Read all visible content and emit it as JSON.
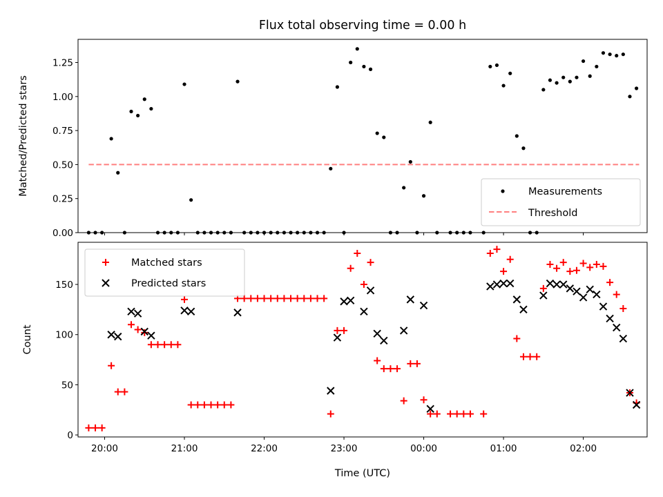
{
  "chart_data": [
    {
      "type": "scatter",
      "title": "Flux total observing time = 0.00 h",
      "xlabel": "",
      "ylabel": "Matched/Predicted stars",
      "xlim": [
        "19:40",
        "02:48"
      ],
      "ylim": [
        0,
        1.42
      ],
      "y_ticks": [
        "0.00",
        "0.25",
        "0.50",
        "0.75",
        "1.00",
        "1.25"
      ],
      "grid": false,
      "legend_position": "lower-right",
      "series": [
        {
          "name": "Measurements",
          "marker": "dot",
          "color": "#000000",
          "points": [
            [
              "19:48",
              0
            ],
            [
              "19:53",
              0
            ],
            [
              "19:58",
              0
            ],
            [
              "20:05",
              0.69
            ],
            [
              "20:10",
              0.44
            ],
            [
              "20:15",
              0
            ],
            [
              "20:20",
              0.89
            ],
            [
              "20:25",
              0.86
            ],
            [
              "20:30",
              0.98
            ],
            [
              "20:35",
              0.91
            ],
            [
              "20:40",
              0
            ],
            [
              "20:45",
              0
            ],
            [
              "20:50",
              0
            ],
            [
              "20:55",
              0
            ],
            [
              "21:00",
              1.09
            ],
            [
              "21:05",
              0.24
            ],
            [
              "21:10",
              0
            ],
            [
              "21:15",
              0
            ],
            [
              "21:20",
              0
            ],
            [
              "21:25",
              0
            ],
            [
              "21:30",
              0
            ],
            [
              "21:35",
              0
            ],
            [
              "21:40",
              1.11
            ],
            [
              "21:45",
              0
            ],
            [
              "21:50",
              0
            ],
            [
              "21:55",
              0
            ],
            [
              "22:00",
              0
            ],
            [
              "22:05",
              0
            ],
            [
              "22:10",
              0
            ],
            [
              "22:15",
              0
            ],
            [
              "22:20",
              0
            ],
            [
              "22:25",
              0
            ],
            [
              "22:30",
              0
            ],
            [
              "22:35",
              0
            ],
            [
              "22:40",
              0
            ],
            [
              "22:45",
              0
            ],
            [
              "22:50",
              0.47
            ],
            [
              "22:55",
              1.07
            ],
            [
              "23:00",
              0
            ],
            [
              "23:05",
              1.25
            ],
            [
              "23:10",
              1.35
            ],
            [
              "23:15",
              1.22
            ],
            [
              "23:20",
              1.2
            ],
            [
              "23:25",
              0.73
            ],
            [
              "23:30",
              0.7
            ],
            [
              "23:35",
              0
            ],
            [
              "23:40",
              0
            ],
            [
              "23:45",
              0.33
            ],
            [
              "23:50",
              0.52
            ],
            [
              "23:55",
              0
            ],
            [
              "00:00",
              0.27
            ],
            [
              "00:05",
              0.81
            ],
            [
              "00:10",
              0
            ],
            [
              "00:20",
              0
            ],
            [
              "00:25",
              0
            ],
            [
              "00:30",
              0
            ],
            [
              "00:35",
              0
            ],
            [
              "00:45",
              0
            ],
            [
              "00:50",
              1.22
            ],
            [
              "00:55",
              1.23
            ],
            [
              "01:00",
              1.08
            ],
            [
              "01:05",
              1.17
            ],
            [
              "01:10",
              0.71
            ],
            [
              "01:15",
              0.62
            ],
            [
              "01:20",
              0
            ],
            [
              "01:25",
              0
            ],
            [
              "01:30",
              1.05
            ],
            [
              "01:35",
              1.12
            ],
            [
              "01:40",
              1.1
            ],
            [
              "01:45",
              1.14
            ],
            [
              "01:50",
              1.11
            ],
            [
              "01:55",
              1.14
            ],
            [
              "02:00",
              1.26
            ],
            [
              "02:05",
              1.15
            ],
            [
              "02:10",
              1.22
            ],
            [
              "02:15",
              1.32
            ],
            [
              "02:20",
              1.31
            ],
            [
              "02:25",
              1.3
            ],
            [
              "02:30",
              1.31
            ],
            [
              "02:35",
              1.0
            ],
            [
              "02:40",
              1.06
            ]
          ]
        },
        {
          "name": "Threshold",
          "marker": "dashed-line",
          "color": "#ff7f7f",
          "points": [
            [
              "19:48",
              0.5
            ],
            [
              "02:42",
              0.5
            ]
          ]
        }
      ]
    },
    {
      "type": "scatter",
      "xlabel": "Time (UTC)",
      "ylabel": "Count",
      "xlim": [
        "19:40",
        "02:48"
      ],
      "ylim": [
        -2,
        192
      ],
      "x_ticks": [
        "20:00",
        "21:00",
        "22:00",
        "23:00",
        "00:00",
        "01:00",
        "02:00"
      ],
      "y_ticks": [
        "0",
        "50",
        "100",
        "150"
      ],
      "grid": false,
      "legend_position": "upper-left",
      "series": [
        {
          "name": "Matched stars",
          "marker": "plus",
          "color": "#ff0000",
          "points": [
            [
              "19:48",
              7
            ],
            [
              "19:53",
              7
            ],
            [
              "19:58",
              7
            ],
            [
              "20:05",
              69
            ],
            [
              "20:10",
              43
            ],
            [
              "20:15",
              43
            ],
            [
              "20:20",
              110
            ],
            [
              "20:25",
              105
            ],
            [
              "20:30",
              102
            ],
            [
              "20:35",
              90
            ],
            [
              "20:40",
              90
            ],
            [
              "20:45",
              90
            ],
            [
              "20:50",
              90
            ],
            [
              "20:55",
              90
            ],
            [
              "21:00",
              135
            ],
            [
              "21:05",
              30
            ],
            [
              "21:10",
              30
            ],
            [
              "21:15",
              30
            ],
            [
              "21:20",
              30
            ],
            [
              "21:25",
              30
            ],
            [
              "21:30",
              30
            ],
            [
              "21:35",
              30
            ],
            [
              "21:40",
              136
            ],
            [
              "21:45",
              136
            ],
            [
              "21:50",
              136
            ],
            [
              "21:55",
              136
            ],
            [
              "22:00",
              136
            ],
            [
              "22:05",
              136
            ],
            [
              "22:10",
              136
            ],
            [
              "22:15",
              136
            ],
            [
              "22:20",
              136
            ],
            [
              "22:25",
              136
            ],
            [
              "22:30",
              136
            ],
            [
              "22:35",
              136
            ],
            [
              "22:40",
              136
            ],
            [
              "22:45",
              136
            ],
            [
              "22:50",
              21
            ],
            [
              "22:55",
              104
            ],
            [
              "23:00",
              104
            ],
            [
              "23:05",
              166
            ],
            [
              "23:10",
              181
            ],
            [
              "23:15",
              150
            ],
            [
              "23:20",
              172
            ],
            [
              "23:25",
              74
            ],
            [
              "23:30",
              66
            ],
            [
              "23:35",
              66
            ],
            [
              "23:40",
              66
            ],
            [
              "23:45",
              34
            ],
            [
              "23:50",
              71
            ],
            [
              "23:55",
              71
            ],
            [
              "00:00",
              35
            ],
            [
              "00:05",
              21
            ],
            [
              "00:10",
              21
            ],
            [
              "00:20",
              21
            ],
            [
              "00:25",
              21
            ],
            [
              "00:30",
              21
            ],
            [
              "00:35",
              21
            ],
            [
              "00:45",
              21
            ],
            [
              "00:50",
              181
            ],
            [
              "00:55",
              185
            ],
            [
              "01:00",
              163
            ],
            [
              "01:05",
              175
            ],
            [
              "01:10",
              96
            ],
            [
              "01:15",
              78
            ],
            [
              "01:20",
              78
            ],
            [
              "01:25",
              78
            ],
            [
              "01:30",
              146
            ],
            [
              "01:35",
              170
            ],
            [
              "01:40",
              166
            ],
            [
              "01:45",
              172
            ],
            [
              "01:50",
              163
            ],
            [
              "01:55",
              164
            ],
            [
              "02:00",
              171
            ],
            [
              "02:05",
              167
            ],
            [
              "02:10",
              170
            ],
            [
              "02:15",
              168
            ],
            [
              "02:20",
              152
            ],
            [
              "02:25",
              140
            ],
            [
              "02:30",
              126
            ],
            [
              "02:35",
              42
            ],
            [
              "02:40",
              32
            ]
          ]
        },
        {
          "name": "Predicted stars",
          "marker": "x",
          "color": "#000000",
          "points": [
            [
              "20:05",
              100
            ],
            [
              "20:10",
              98
            ],
            [
              "20:20",
              123
            ],
            [
              "20:25",
              121
            ],
            [
              "20:30",
              103
            ],
            [
              "20:35",
              99
            ],
            [
              "21:00",
              124
            ],
            [
              "21:05",
              123
            ],
            [
              "21:40",
              122
            ],
            [
              "22:50",
              44
            ],
            [
              "22:55",
              97
            ],
            [
              "23:00",
              133
            ],
            [
              "23:05",
              134
            ],
            [
              "23:15",
              123
            ],
            [
              "23:20",
              144
            ],
            [
              "23:25",
              101
            ],
            [
              "23:30",
              94
            ],
            [
              "23:45",
              104
            ],
            [
              "23:50",
              135
            ],
            [
              "00:00",
              129
            ],
            [
              "00:05",
              26
            ],
            [
              "00:50",
              148
            ],
            [
              "00:55",
              150
            ],
            [
              "01:00",
              151
            ],
            [
              "01:05",
              151
            ],
            [
              "01:10",
              135
            ],
            [
              "01:15",
              125
            ],
            [
              "01:30",
              139
            ],
            [
              "01:35",
              151
            ],
            [
              "01:40",
              150
            ],
            [
              "01:45",
              150
            ],
            [
              "01:50",
              146
            ],
            [
              "01:55",
              143
            ],
            [
              "02:00",
              137
            ],
            [
              "02:05",
              145
            ],
            [
              "02:10",
              140
            ],
            [
              "02:15",
              128
            ],
            [
              "02:20",
              116
            ],
            [
              "02:25",
              107
            ],
            [
              "02:30",
              96
            ],
            [
              "02:35",
              42
            ],
            [
              "02:40",
              30
            ]
          ]
        }
      ]
    }
  ]
}
